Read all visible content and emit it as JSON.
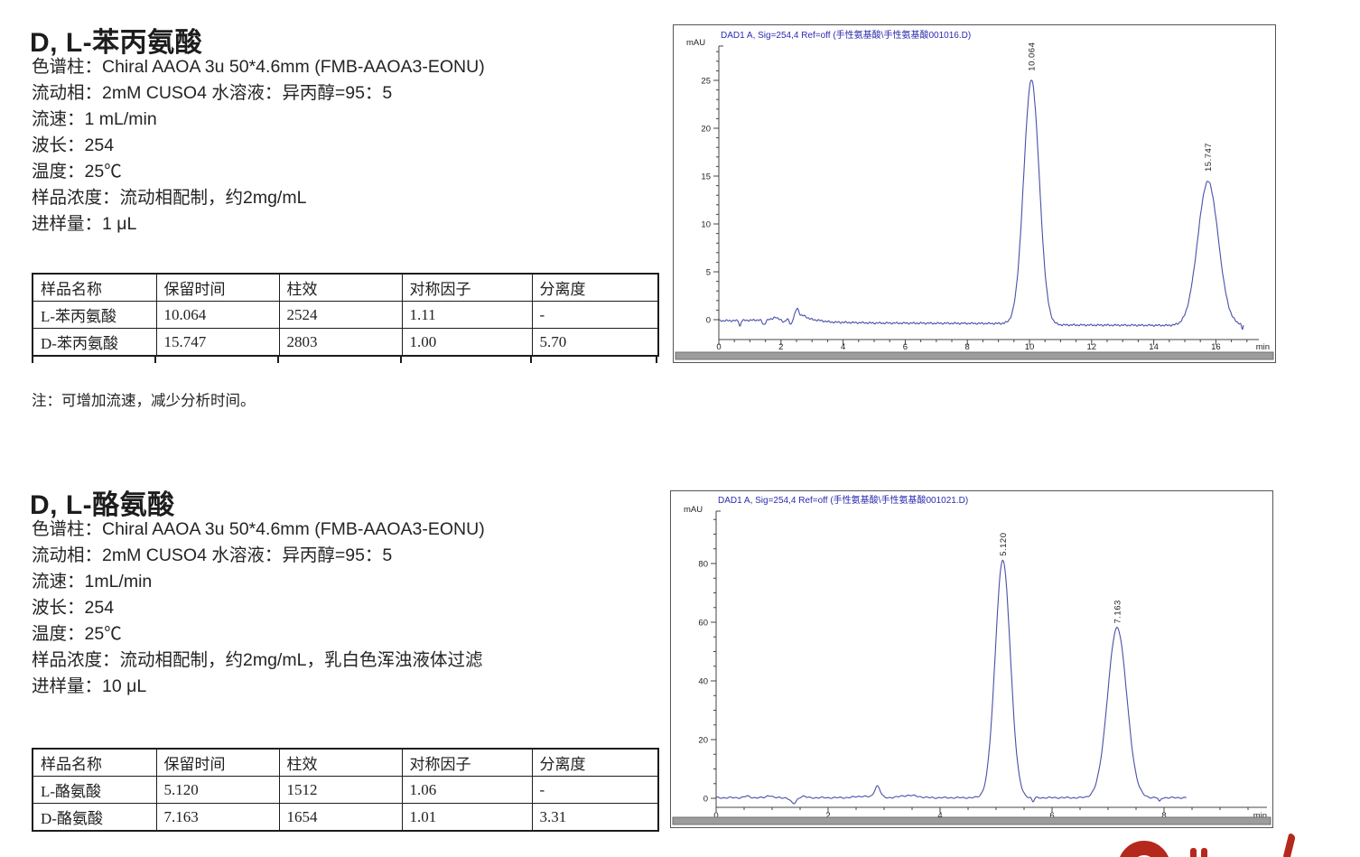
{
  "page": {
    "background": "#ffffff"
  },
  "sections": [
    {
      "heading": "D, L-苯丙氨酸",
      "params": [
        "色谱柱：Chiral AAOA 3u 50*4.6mm (FMB-AAOA3-EONU)",
        "流动相：2mM CUSO4 水溶液：异丙醇=95：5",
        "流速：1 mL/min",
        "波长：254",
        "温度：25℃",
        "样品浓度：流动相配制，约2mg/mL",
        "进样量：1 μL"
      ],
      "table": {
        "headers": [
          "样品名称",
          "保留时间",
          "柱效",
          "对称因子",
          "分离度"
        ],
        "rows": [
          [
            "L-苯丙氨酸",
            "10.064",
            "2524",
            "1.11",
            "-"
          ],
          [
            "D-苯丙氨酸",
            "15.747",
            "2803",
            "1.00",
            "5.70"
          ]
        ]
      },
      "note": "注：可增加流速，减少分析时间。"
    },
    {
      "heading": "D, L-酪氨酸",
      "params": [
        "色谱柱：Chiral AAOA 3u 50*4.6mm (FMB-AAOA3-EONU)",
        "流动相：2mM CUSO4 水溶液：异丙醇=95：5",
        "流速：1mL/min",
        "波长：254",
        "温度：25℃",
        "样品浓度：流动相配制，约2mg/mL，乳白色浑浊液体过滤",
        "进样量：10 μL"
      ],
      "table": {
        "headers": [
          "样品名称",
          "保留时间",
          "柱效",
          "对称因子",
          "分离度"
        ],
        "rows": [
          [
            "L-酪氨酸",
            "5.120",
            "1512",
            "1.06",
            "-"
          ],
          [
            "D-酪氨酸",
            "7.163",
            "1654",
            "1.01",
            "3.31"
          ]
        ]
      }
    }
  ],
  "chart_data": [
    {
      "type": "line",
      "title": "DAD1 A, Sig=254,4 Ref=off (手性氨基酸\\手性氨基酸001016.D)",
      "ylabel": "mAU",
      "xlabel": "min",
      "xlim": [
        0,
        17.35
      ],
      "ylim": [
        -2.1,
        28
      ],
      "x_tick_step": 2,
      "x_minor_step": 0.5,
      "x_label_max": 16,
      "y_tick_step": 5,
      "y_minor_step": 1,
      "y_label_max": 25,
      "data_end": 16.9,
      "peaks": [
        {
          "rt": 10.064,
          "height": 25.5,
          "sigma": 0.25,
          "label": "10.064"
        },
        {
          "rt": 15.747,
          "height": 15.0,
          "sigma": 0.33,
          "label": "15.747"
        }
      ],
      "baseline_drift": [
        [
          0,
          -0.1
        ],
        [
          0.6,
          -0.1
        ],
        [
          2.8,
          0.12
        ],
        [
          3.6,
          -0.25
        ],
        [
          5,
          -0.35
        ],
        [
          9.2,
          -0.4
        ],
        [
          11,
          -0.55
        ],
        [
          15,
          -0.6
        ],
        [
          16.9,
          -0.5
        ]
      ],
      "baseline_events": [
        {
          "t": 0.68,
          "h": -0.6,
          "w": 0.025
        },
        {
          "t": 1.45,
          "h": -0.5,
          "w": 0.05
        },
        {
          "t": 1.8,
          "h": 0.25,
          "w": 0.06
        },
        {
          "t": 2.1,
          "h": -0.3,
          "w": 0.05
        },
        {
          "t": 2.32,
          "h": -0.55,
          "w": 0.04
        },
        {
          "t": 2.52,
          "h": 1.05,
          "w": 0.06
        },
        {
          "t": 2.72,
          "h": 0.3,
          "w": 0.1
        },
        {
          "t": 16.85,
          "h": -0.55,
          "w": 0.025
        }
      ],
      "noise_amp": 0.1,
      "colors": {
        "curve": "#4a50a8",
        "title": "#2b2bb0",
        "axis": "#444444",
        "text": "#222222"
      }
    },
    {
      "type": "line",
      "title": "DAD1 A, Sig=254,4 Ref=off (手性氨基酸\\手性氨基酸001021.D)",
      "ylabel": "mAU",
      "xlabel": "min",
      "xlim": [
        0,
        9.85
      ],
      "ylim": [
        -6.5,
        97
      ],
      "x_tick_step": 2,
      "x_minor_step": 0.5,
      "x_label_max": 8,
      "y_tick_step": 20,
      "y_minor_step": 5,
      "y_label_max": 80,
      "data_end": 8.4,
      "peaks": [
        {
          "rt": 5.12,
          "height": 81,
          "sigma": 0.135,
          "label": "5.120"
        },
        {
          "rt": 7.163,
          "height": 58,
          "sigma": 0.17,
          "label": "7.163"
        }
      ],
      "baseline_drift": [
        [
          0,
          0.2
        ],
        [
          8.4,
          0.2
        ]
      ],
      "baseline_events": [
        {
          "t": 0.55,
          "h": 0.5,
          "w": 0.05
        },
        {
          "t": 0.95,
          "h": 0.8,
          "w": 0.045
        },
        {
          "t": 1.38,
          "h": -2.0,
          "w": 0.05
        },
        {
          "t": 1.55,
          "h": 0.5,
          "w": 0.05
        },
        {
          "t": 2.6,
          "h": 0.5,
          "w": 0.12
        },
        {
          "t": 2.88,
          "h": 4.0,
          "w": 0.05
        },
        {
          "t": 3.45,
          "h": 0.8,
          "w": 0.15
        },
        {
          "t": 5.66,
          "h": -1.4,
          "w": 0.02
        },
        {
          "t": 7.92,
          "h": -1.4,
          "w": 0.02
        }
      ],
      "noise_amp": 0.28,
      "colors": {
        "curve": "#4a50a8",
        "title": "#2b2bb0",
        "axis": "#444444",
        "text": "#222222"
      }
    }
  ],
  "logo": {
    "color": "#b5281c"
  }
}
